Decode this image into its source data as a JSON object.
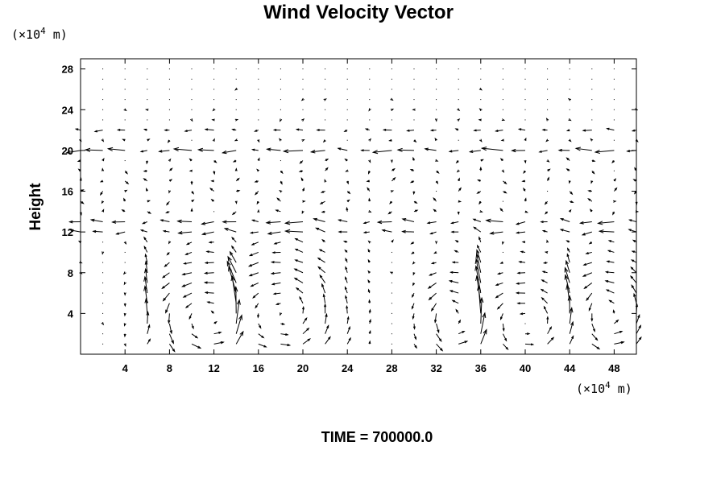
{
  "chart_data": {
    "type": "vector_field",
    "title": "Wind Velocity Vector",
    "ylabel": "Height",
    "x_unit_prefix": "(×10",
    "x_unit_exp": "4",
    "x_unit_suffix": " m)",
    "y_unit_prefix": "(×10",
    "y_unit_exp": "4",
    "y_unit_suffix": " m)",
    "footer": "TIME = 700000.0",
    "xlim": [
      0,
      50
    ],
    "ylim": [
      0,
      29
    ],
    "xticks": [
      4,
      8,
      12,
      16,
      20,
      24,
      28,
      32,
      36,
      40,
      44,
      48
    ],
    "yticks": [
      4,
      8,
      12,
      16,
      20,
      24,
      28
    ],
    "grid_x_step": 2,
    "grid_y_step": 1,
    "grid_y_start": 1,
    "circulation_cells": [
      {
        "cx": 10.5,
        "cy": 3.5,
        "rx": 3.5,
        "ry": 4.5,
        "direction": "counterclockwise"
      },
      {
        "cx": 18.5,
        "cy": 4.0,
        "rx": 4.5,
        "ry": 5.5,
        "direction": "counterclockwise"
      },
      {
        "cx": 33.5,
        "cy": 3.5,
        "rx": 2.5,
        "ry": 4.0,
        "direction": "counterclockwise"
      },
      {
        "cx": 40.0,
        "cy": 3.0,
        "rx": 2.5,
        "ry": 4.0,
        "direction": "counterclockwise"
      },
      {
        "cx": 47.5,
        "cy": 4.0,
        "rx": 3.0,
        "ry": 4.5,
        "direction": "counterclockwise"
      }
    ],
    "updraft_columns": [
      {
        "x": 6,
        "strength": 0.8
      },
      {
        "x": 14,
        "strength": 1.0
      },
      {
        "x": 36,
        "strength": 0.9
      },
      {
        "x": 44,
        "strength": 0.8
      }
    ],
    "easterly_jets": [
      {
        "y": 20,
        "strength": 0.7
      },
      {
        "y": 13,
        "strength": 0.5
      },
      {
        "y": 12,
        "strength": 0.4
      },
      {
        "y": 22,
        "strength": 0.3
      }
    ]
  }
}
